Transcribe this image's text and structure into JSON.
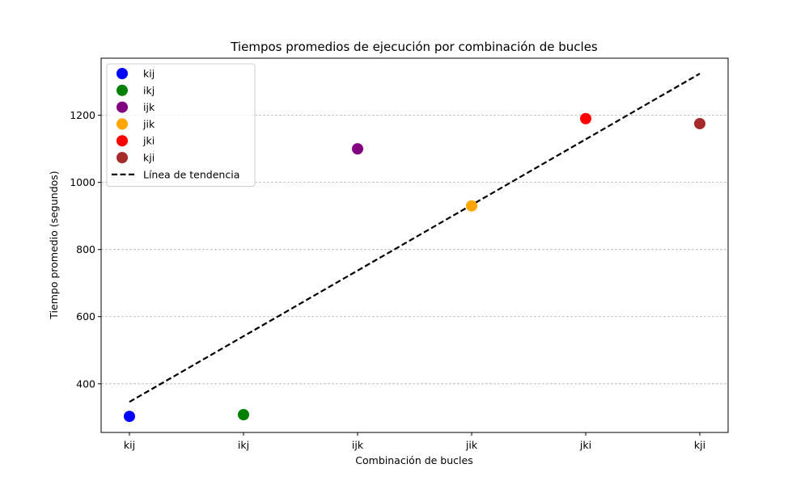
{
  "chart_data": {
    "type": "scatter",
    "title": "Tiempos promedios de ejecución por combinación de bucles",
    "xlabel": "Combinación de bucles",
    "ylabel": "Tiempo promedio (segundos)",
    "categories": [
      "kij",
      "ikj",
      "ijk",
      "jik",
      "jki",
      "kji"
    ],
    "ylim": [
      255,
      1370
    ],
    "yticks": [
      400,
      600,
      800,
      1000,
      1200
    ],
    "grid": "y-dashed",
    "legend_position": "top-left",
    "series": [
      {
        "name": "kij",
        "x": "kij",
        "value": 303,
        "color": "#0000ff"
      },
      {
        "name": "ikj",
        "x": "ikj",
        "value": 308,
        "color": "#008000"
      },
      {
        "name": "ijk",
        "x": "ijk",
        "value": 1100,
        "color": "#800080"
      },
      {
        "name": "jik",
        "x": "jik",
        "value": 930,
        "color": "#ffa500"
      },
      {
        "name": "jki",
        "x": "jki",
        "value": 1190,
        "color": "#ff0000"
      },
      {
        "name": "kji",
        "x": "kji",
        "value": 1175,
        "color": "#a52a2a"
      }
    ],
    "trendline": {
      "name": "Línea de tendencia",
      "start": {
        "x": "kij",
        "y": 346
      },
      "end": {
        "x": "kji",
        "y": 1324
      },
      "color": "#000000",
      "style": "dashed"
    }
  }
}
